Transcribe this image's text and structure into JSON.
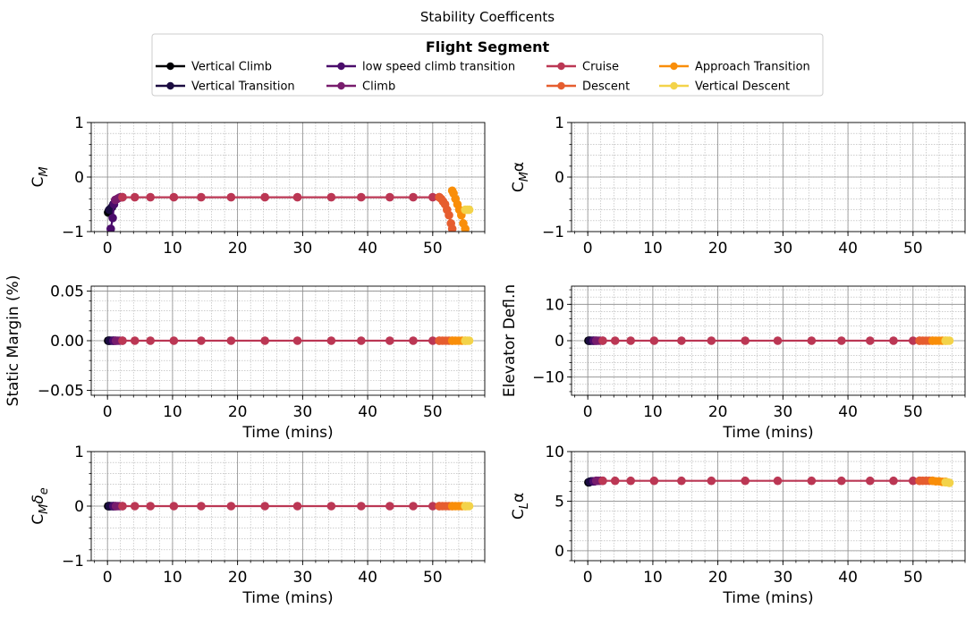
{
  "figure": {
    "title": "Stability Coefficents",
    "legend": {
      "title": "Flight Segment",
      "placement": "top-center",
      "columns": 4
    }
  },
  "segments": [
    {
      "name": "Vertical Climb",
      "color": "#000004"
    },
    {
      "name": "Vertical Transition",
      "color": "#1b0c41"
    },
    {
      "name": "low speed climb transition",
      "color": "#4a0c6b"
    },
    {
      "name": "Climb",
      "color": "#781c6d"
    },
    {
      "name": "Cruise",
      "color": "#bb3754"
    },
    {
      "name": "Descent",
      "color": "#e65d2f"
    },
    {
      "name": "Approach Transition",
      "color": "#f98e09"
    },
    {
      "name": "Vertical Descent",
      "color": "#f3d34a"
    }
  ],
  "chart_data": [
    {
      "id": "cm",
      "type": "line",
      "ylabel_html": "C<tspan font-style='italic' font-size='13' dy='5'>M</tspan>",
      "xlabel": "",
      "xlim": [
        -2.5,
        58
      ],
      "xticks": [
        0,
        10,
        20,
        30,
        40,
        50
      ],
      "ylim": [
        -1,
        1
      ],
      "yticks": [
        -1,
        0,
        1
      ],
      "grid": true,
      "series": [
        {
          "segment": 0,
          "x": [
            0.1,
            0.2,
            0.3
          ],
          "y": [
            -0.65,
            -0.62,
            -0.6
          ]
        },
        {
          "segment": 1,
          "x": [
            0.3,
            0.5,
            0.7,
            0.9
          ],
          "y": [
            -0.6,
            -0.58,
            -0.55,
            -0.5
          ]
        },
        {
          "segment": 2,
          "x": [
            0.5,
            0.8,
            1.0,
            1.2
          ],
          "y": [
            -0.95,
            -0.75,
            -0.5,
            -0.42
          ]
        },
        {
          "segment": 3,
          "x": [
            1.2,
            1.5,
            1.8,
            2.0,
            2.3
          ],
          "y": [
            -0.42,
            -0.4,
            -0.38,
            -0.37,
            -0.37
          ]
        },
        {
          "segment": 4,
          "x": [
            2.3,
            4.2,
            6.6,
            10.2,
            14.4,
            19.0,
            24.2,
            29.2,
            34.4,
            39.0,
            43.4,
            47.0,
            50.0,
            51.0
          ],
          "y": [
            -0.37,
            -0.37,
            -0.37,
            -0.37,
            -0.37,
            -0.37,
            -0.37,
            -0.37,
            -0.37,
            -0.37,
            -0.37,
            -0.37,
            -0.37,
            -0.37
          ]
        },
        {
          "segment": 5,
          "x": [
            51.0,
            51.3,
            51.6,
            51.9,
            52.2,
            52.5,
            52.8,
            53.0
          ],
          "y": [
            -0.37,
            -0.4,
            -0.45,
            -0.5,
            -0.6,
            -0.7,
            -0.85,
            -0.95
          ]
        },
        {
          "segment": 6,
          "x": [
            53.0,
            53.2,
            53.5,
            53.8,
            54.1,
            54.4,
            54.7,
            55.0
          ],
          "y": [
            -0.25,
            -0.3,
            -0.4,
            -0.5,
            -0.6,
            -0.7,
            -0.85,
            -0.95
          ]
        },
        {
          "segment": 7,
          "x": [
            55.0,
            55.3,
            55.6
          ],
          "y": [
            -0.6,
            -0.6,
            -0.6
          ]
        }
      ]
    },
    {
      "id": "cma",
      "type": "line",
      "ylabel_html": "C<tspan font-style='italic' font-size='13' dy='5'>M</tspan><tspan dy='-5'>α</tspan>",
      "xlabel": "",
      "xlim": [
        -2.5,
        58
      ],
      "xticks": [
        0,
        10,
        20,
        30,
        40,
        50
      ],
      "ylim": [
        -1,
        1
      ],
      "yticks": [
        -1,
        0,
        1
      ],
      "grid": true,
      "series": []
    },
    {
      "id": "sm",
      "type": "line",
      "ylabel_html": "Static Margin (%)",
      "xlabel": "Time (mins)",
      "xlim": [
        -2.5,
        58
      ],
      "xticks": [
        0,
        10,
        20,
        30,
        40,
        50
      ],
      "ylim": [
        -0.055,
        0.055
      ],
      "yticks": [
        -0.05,
        0.0,
        0.05
      ],
      "ytick_labels": [
        "−0.05",
        "0.00",
        "0.05"
      ],
      "grid": true,
      "series": [
        {
          "segment": 0,
          "x": [
            0.1,
            0.2,
            0.3
          ],
          "y": [
            0,
            0,
            0
          ]
        },
        {
          "segment": 1,
          "x": [
            0.3,
            0.5,
            0.7,
            0.9
          ],
          "y": [
            0,
            0,
            0,
            0
          ]
        },
        {
          "segment": 2,
          "x": [
            0.9,
            1.1,
            1.3
          ],
          "y": [
            0,
            0,
            0
          ]
        },
        {
          "segment": 3,
          "x": [
            1.3,
            1.6,
            1.9,
            2.3
          ],
          "y": [
            0,
            0,
            0,
            0
          ]
        },
        {
          "segment": 4,
          "x": [
            2.3,
            4.2,
            6.6,
            10.2,
            14.4,
            19.0,
            24.2,
            29.2,
            34.4,
            39.0,
            43.4,
            47.0,
            50.0,
            51.0
          ],
          "y": [
            0,
            0,
            0,
            0,
            0,
            0,
            0,
            0,
            0,
            0,
            0,
            0,
            0,
            0
          ]
        },
        {
          "segment": 5,
          "x": [
            51.0,
            51.5,
            52.0,
            52.5,
            53.0
          ],
          "y": [
            0,
            0,
            0,
            0,
            0
          ]
        },
        {
          "segment": 6,
          "x": [
            53.0,
            53.5,
            54.0,
            54.5,
            55.0
          ],
          "y": [
            0,
            0,
            0,
            0,
            0
          ]
        },
        {
          "segment": 7,
          "x": [
            55.0,
            55.3,
            55.6
          ],
          "y": [
            0,
            0,
            0
          ]
        }
      ]
    },
    {
      "id": "elev",
      "type": "line",
      "ylabel_html": "Elevator Defl.n",
      "xlabel": "Time (mins)",
      "xlim": [
        -2.5,
        58
      ],
      "xticks": [
        0,
        10,
        20,
        30,
        40,
        50
      ],
      "ylim": [
        -15,
        15
      ],
      "yticks": [
        -10,
        0,
        10
      ],
      "ytick_labels": [
        "−10",
        "0",
        "10"
      ],
      "grid": true,
      "series": [
        {
          "segment": 0,
          "x": [
            0.1,
            0.2,
            0.3
          ],
          "y": [
            0,
            0,
            0
          ]
        },
        {
          "segment": 1,
          "x": [
            0.3,
            0.5,
            0.7,
            0.9
          ],
          "y": [
            0,
            0,
            0,
            0
          ]
        },
        {
          "segment": 2,
          "x": [
            0.9,
            1.1,
            1.3
          ],
          "y": [
            0,
            0,
            0
          ]
        },
        {
          "segment": 3,
          "x": [
            1.3,
            1.6,
            1.9,
            2.3
          ],
          "y": [
            0,
            0,
            0,
            0
          ]
        },
        {
          "segment": 4,
          "x": [
            2.3,
            4.2,
            6.6,
            10.2,
            14.4,
            19.0,
            24.2,
            29.2,
            34.4,
            39.0,
            43.4,
            47.0,
            50.0,
            51.0
          ],
          "y": [
            0,
            0,
            0,
            0,
            0,
            0,
            0,
            0,
            0,
            0,
            0,
            0,
            0,
            0
          ]
        },
        {
          "segment": 5,
          "x": [
            51.0,
            51.5,
            52.0,
            52.5,
            53.0
          ],
          "y": [
            0,
            0,
            0,
            0,
            0
          ]
        },
        {
          "segment": 6,
          "x": [
            53.0,
            53.5,
            54.0,
            54.5,
            55.0
          ],
          "y": [
            0,
            0,
            0,
            0,
            0
          ]
        },
        {
          "segment": 7,
          "x": [
            55.0,
            55.3,
            55.6
          ],
          "y": [
            0,
            0,
            0
          ]
        }
      ]
    },
    {
      "id": "cmde",
      "type": "line",
      "ylabel_html": "C<tspan font-style='italic' font-size='13' dy='5'>M</tspan><tspan font-style='italic' dy='-5'>δ</tspan><tspan font-style='italic' font-size='13' dy='5'>e</tspan>",
      "xlabel": "Time (mins)",
      "xlim": [
        -2.5,
        58
      ],
      "xticks": [
        0,
        10,
        20,
        30,
        40,
        50
      ],
      "ylim": [
        -1,
        1
      ],
      "yticks": [
        -1,
        0,
        1
      ],
      "grid": true,
      "series": [
        {
          "segment": 0,
          "x": [
            0.1,
            0.2,
            0.3
          ],
          "y": [
            0,
            0,
            0
          ]
        },
        {
          "segment": 1,
          "x": [
            0.3,
            0.5,
            0.7,
            0.9
          ],
          "y": [
            0,
            0,
            0,
            0
          ]
        },
        {
          "segment": 2,
          "x": [
            0.9,
            1.1,
            1.3
          ],
          "y": [
            0,
            0,
            0
          ]
        },
        {
          "segment": 3,
          "x": [
            1.3,
            1.6,
            1.9,
            2.3
          ],
          "y": [
            0,
            0,
            0,
            0
          ]
        },
        {
          "segment": 4,
          "x": [
            2.3,
            4.2,
            6.6,
            10.2,
            14.4,
            19.0,
            24.2,
            29.2,
            34.4,
            39.0,
            43.4,
            47.0,
            50.0,
            51.0
          ],
          "y": [
            0,
            0,
            0,
            0,
            0,
            0,
            0,
            0,
            0,
            0,
            0,
            0,
            0,
            0
          ]
        },
        {
          "segment": 5,
          "x": [
            51.0,
            51.5,
            52.0,
            52.5,
            53.0
          ],
          "y": [
            0,
            0,
            0,
            0,
            0
          ]
        },
        {
          "segment": 6,
          "x": [
            53.0,
            53.5,
            54.0,
            54.5,
            55.0
          ],
          "y": [
            0,
            0,
            0,
            0,
            0
          ]
        },
        {
          "segment": 7,
          "x": [
            55.0,
            55.3,
            55.6
          ],
          "y": [
            0,
            0,
            0
          ]
        }
      ]
    },
    {
      "id": "cla",
      "type": "line",
      "ylabel_html": "C<tspan font-style='italic' font-size='13' dy='5'>L</tspan><tspan dy='-5'>α</tspan>",
      "xlabel": "Time (mins)",
      "xlim": [
        -2.5,
        58
      ],
      "xticks": [
        0,
        10,
        20,
        30,
        40,
        50
      ],
      "ylim": [
        -1,
        10
      ],
      "yticks": [
        0,
        5,
        10
      ],
      "grid": true,
      "series": [
        {
          "segment": 0,
          "x": [
            0.1,
            0.2,
            0.3
          ],
          "y": [
            6.9,
            6.9,
            6.95
          ]
        },
        {
          "segment": 1,
          "x": [
            0.3,
            0.5,
            0.7,
            0.9
          ],
          "y": [
            6.95,
            7.0,
            7.0,
            7.0
          ]
        },
        {
          "segment": 2,
          "x": [
            0.9,
            1.1,
            1.3
          ],
          "y": [
            7.0,
            7.0,
            7.05
          ]
        },
        {
          "segment": 3,
          "x": [
            1.3,
            1.6,
            1.9,
            2.3
          ],
          "y": [
            7.05,
            7.05,
            7.05,
            7.05
          ]
        },
        {
          "segment": 4,
          "x": [
            2.3,
            4.2,
            6.6,
            10.2,
            14.4,
            19.0,
            24.2,
            29.2,
            34.4,
            39.0,
            43.4,
            47.0,
            50.0,
            51.0
          ],
          "y": [
            7.05,
            7.05,
            7.05,
            7.05,
            7.05,
            7.05,
            7.05,
            7.05,
            7.05,
            7.05,
            7.05,
            7.05,
            7.05,
            7.05
          ]
        },
        {
          "segment": 5,
          "x": [
            51.0,
            51.5,
            52.0,
            52.5,
            53.0
          ],
          "y": [
            7.05,
            7.05,
            7.05,
            7.05,
            7.05
          ]
        },
        {
          "segment": 6,
          "x": [
            53.0,
            53.5,
            54.0,
            54.5,
            55.0
          ],
          "y": [
            7.05,
            7.0,
            7.0,
            6.95,
            6.95
          ]
        },
        {
          "segment": 7,
          "x": [
            55.0,
            55.3,
            55.6
          ],
          "y": [
            6.9,
            6.9,
            6.85
          ]
        }
      ]
    }
  ]
}
